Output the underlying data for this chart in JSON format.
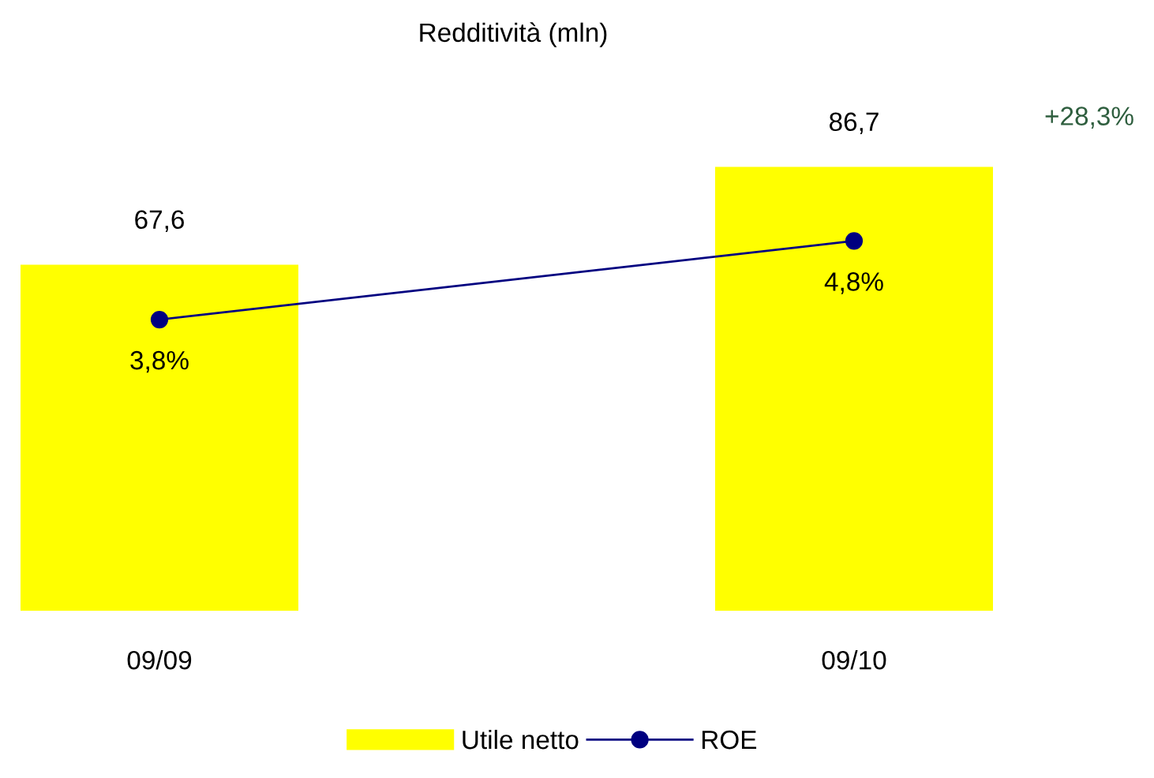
{
  "chart_data": {
    "type": "bar",
    "title": "Redditività (mln)",
    "categories": [
      "09/09",
      "09/10"
    ],
    "series": [
      {
        "name": "Utile netto",
        "color": "#ffff00",
        "values": [
          67.6,
          86.7
        ],
        "value_labels": [
          "67,6",
          "86,7"
        ]
      },
      {
        "name": "ROE",
        "type": "line",
        "axis": "y2",
        "color": "#000080",
        "values": [
          3.8,
          4.8
        ],
        "value_labels": [
          "3,8%",
          "4,8%"
        ],
        "marker": "circle"
      }
    ],
    "tick_labels": "x",
    "grid": false,
    "legend": "bottom",
    "annotations": [
      "+28,3%"
    ]
  }
}
